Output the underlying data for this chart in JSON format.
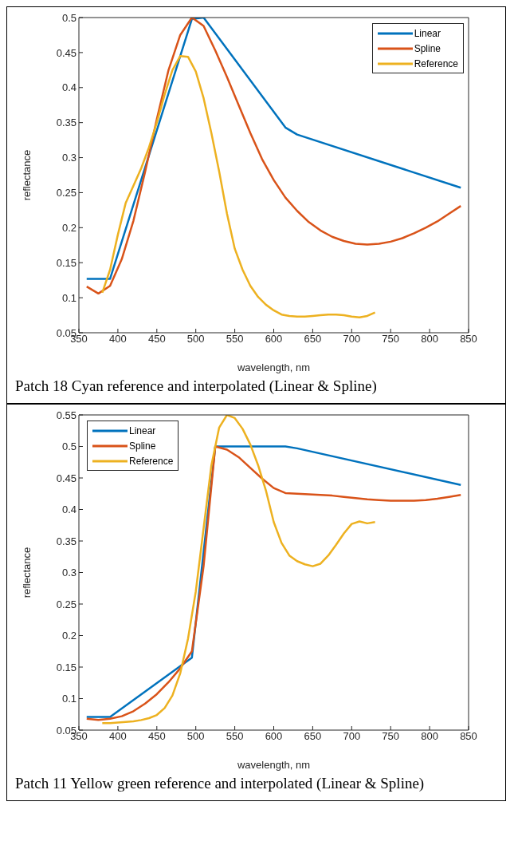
{
  "chart_data": [
    {
      "type": "line",
      "xlabel": "wavelength, nm",
      "ylabel": "reflectance",
      "xlim": [
        350,
        850
      ],
      "xticks": [
        350,
        400,
        450,
        500,
        550,
        600,
        650,
        700,
        750,
        800,
        850
      ],
      "ylim": [
        0.05,
        0.5
      ],
      "yticks": [
        0.05,
        0.1,
        0.15,
        0.2,
        0.25,
        0.3,
        0.35,
        0.4,
        0.45,
        0.5
      ],
      "legend": "top right",
      "grid": false,
      "marker": "none",
      "line_style": "solid",
      "annotations": [
        "Patch 18 Cyan reference and interpolated (Linear & Spline)"
      ],
      "series": [
        {
          "name": "Linear",
          "color": "#0072bd",
          "x": [
            360,
            390,
            495,
            510,
            615,
            630,
            840
          ],
          "values": [
            0.127,
            0.127,
            0.498,
            0.5,
            0.343,
            0.333,
            0.257
          ]
        },
        {
          "name": "Spline",
          "color": "#d95319",
          "x": [
            360,
            375,
            390,
            405,
            420,
            435,
            450,
            465,
            480,
            495,
            510,
            525,
            540,
            555,
            570,
            585,
            600,
            615,
            630,
            645,
            660,
            675,
            690,
            705,
            720,
            735,
            750,
            765,
            780,
            795,
            810,
            825,
            840
          ],
          "values": [
            0.116,
            0.106,
            0.117,
            0.155,
            0.21,
            0.28,
            0.355,
            0.425,
            0.475,
            0.5,
            0.488,
            0.453,
            0.415,
            0.375,
            0.335,
            0.298,
            0.268,
            0.243,
            0.224,
            0.208,
            0.196,
            0.187,
            0.181,
            0.177,
            0.176,
            0.177,
            0.18,
            0.185,
            0.192,
            0.2,
            0.209,
            0.22,
            0.231
          ]
        },
        {
          "name": "Reference",
          "color": "#edb120",
          "x": [
            380,
            390,
            400,
            410,
            420,
            430,
            440,
            450,
            460,
            470,
            480,
            490,
            500,
            510,
            520,
            530,
            540,
            550,
            560,
            570,
            580,
            590,
            600,
            610,
            620,
            630,
            640,
            650,
            660,
            670,
            680,
            690,
            700,
            710,
            720,
            730
          ],
          "values": [
            0.107,
            0.14,
            0.19,
            0.235,
            0.26,
            0.285,
            0.315,
            0.35,
            0.39,
            0.425,
            0.445,
            0.444,
            0.423,
            0.385,
            0.335,
            0.28,
            0.22,
            0.17,
            0.14,
            0.117,
            0.101,
            0.09,
            0.082,
            0.076,
            0.074,
            0.073,
            0.073,
            0.074,
            0.075,
            0.076,
            0.076,
            0.075,
            0.073,
            0.072,
            0.074,
            0.079
          ]
        }
      ]
    },
    {
      "type": "line",
      "xlabel": "wavelength, nm",
      "ylabel": "reflectance",
      "xlim": [
        350,
        850
      ],
      "xticks": [
        350,
        400,
        450,
        500,
        550,
        600,
        650,
        700,
        750,
        800,
        850
      ],
      "ylim": [
        0.05,
        0.55
      ],
      "yticks": [
        0.05,
        0.1,
        0.15,
        0.2,
        0.25,
        0.3,
        0.35,
        0.4,
        0.45,
        0.5,
        0.55
      ],
      "legend": "top left",
      "grid": false,
      "marker": "none",
      "line_style": "solid",
      "annotations": [
        "Patch 11 Yellow green reference and interpolated (Linear & Spline)"
      ],
      "series": [
        {
          "name": "Linear",
          "color": "#0072bd",
          "x": [
            360,
            390,
            495,
            525,
            615,
            630,
            840
          ],
          "values": [
            0.071,
            0.071,
            0.165,
            0.5,
            0.5,
            0.497,
            0.439
          ]
        },
        {
          "name": "Spline",
          "color": "#d95319",
          "x": [
            360,
            375,
            390,
            405,
            420,
            435,
            450,
            465,
            480,
            495,
            510,
            525,
            540,
            555,
            570,
            585,
            600,
            615,
            630,
            645,
            660,
            675,
            690,
            705,
            720,
            735,
            750,
            765,
            780,
            795,
            810,
            825,
            840
          ],
          "values": [
            0.068,
            0.066,
            0.068,
            0.072,
            0.08,
            0.092,
            0.107,
            0.126,
            0.148,
            0.175,
            0.31,
            0.5,
            0.495,
            0.483,
            0.466,
            0.449,
            0.434,
            0.426,
            0.425,
            0.424,
            0.423,
            0.422,
            0.42,
            0.418,
            0.416,
            0.415,
            0.414,
            0.414,
            0.414,
            0.415,
            0.417,
            0.42,
            0.423
          ]
        },
        {
          "name": "Reference",
          "color": "#edb120",
          "x": [
            380,
            390,
            400,
            410,
            420,
            430,
            440,
            450,
            460,
            470,
            480,
            490,
            500,
            510,
            520,
            530,
            540,
            550,
            560,
            570,
            580,
            590,
            600,
            610,
            620,
            630,
            640,
            650,
            660,
            670,
            680,
            690,
            700,
            710,
            720,
            730
          ],
          "values": [
            0.061,
            0.061,
            0.062,
            0.063,
            0.064,
            0.066,
            0.069,
            0.074,
            0.085,
            0.105,
            0.14,
            0.195,
            0.27,
            0.37,
            0.47,
            0.53,
            0.55,
            0.545,
            0.528,
            0.503,
            0.47,
            0.43,
            0.38,
            0.347,
            0.327,
            0.318,
            0.313,
            0.31,
            0.314,
            0.327,
            0.344,
            0.362,
            0.377,
            0.381,
            0.378,
            0.38
          ]
        }
      ]
    }
  ]
}
